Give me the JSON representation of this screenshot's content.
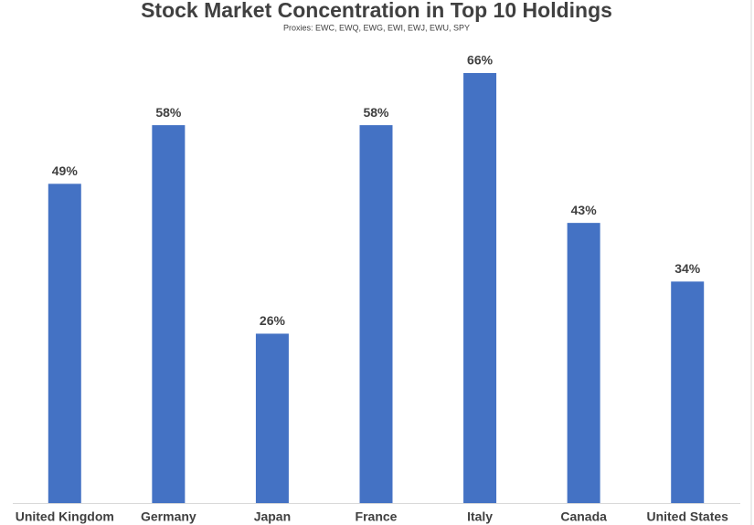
{
  "chart_data": {
    "type": "bar",
    "title": "Stock Market Concentration in Top 10 Holdings",
    "subtitle": "Proxies: EWC, EWQ, EWG, EWI, EWJ, EWU, SPY",
    "categories": [
      "United Kingdom",
      "Germany",
      "Japan",
      "France",
      "Italy",
      "Canada",
      "United States"
    ],
    "values": [
      49,
      58,
      26,
      58,
      66,
      43,
      34
    ],
    "value_labels": [
      "49%",
      "58%",
      "26%",
      "58%",
      "66%",
      "43%",
      "34%"
    ],
    "color": "#4472c4"
  }
}
